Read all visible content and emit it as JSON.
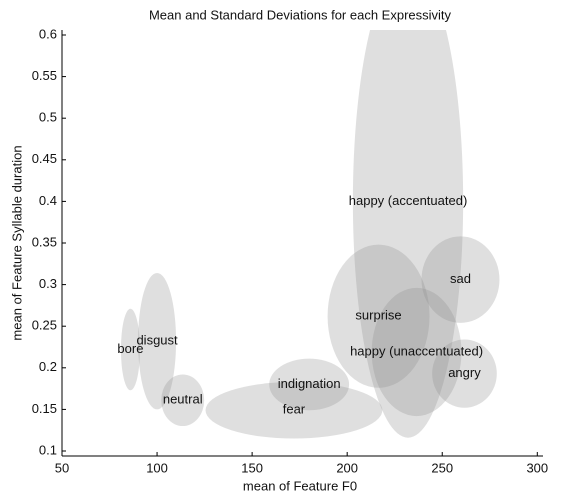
{
  "chart_data": {
    "type": "ellipse",
    "title": "Mean and Standard Deviations for each Expressivity",
    "x_label": "mean of Feature F0",
    "y_label": "mean of Feature Syllable duration",
    "xlim": [
      50,
      303
    ],
    "xticks": [
      50,
      100,
      150,
      200,
      250,
      300
    ],
    "ylim": [
      0.094,
      0.606
    ],
    "yticks": [
      0.1,
      0.15,
      0.2,
      0.25,
      0.3,
      0.35,
      0.4,
      0.45,
      0.5,
      0.55,
      0.6
    ],
    "color": "#8c8c8c",
    "series": [
      {
        "name": "happy (accentuated)",
        "x": 232,
        "y": 0.4,
        "x_std": 29,
        "y_std": 0.284
      },
      {
        "name": "bore",
        "x": 86,
        "y": 0.222,
        "x_std": 5,
        "y_std": 0.049
      },
      {
        "name": "disgust",
        "x": 100,
        "y": 0.232,
        "x_std": 10,
        "y_std": 0.082
      },
      {
        "name": "neutral",
        "x": 113.5,
        "y": 0.161,
        "x_std": 11.3,
        "y_std": 0.031
      },
      {
        "name": "fear",
        "x": 172,
        "y": 0.149,
        "x_std": 46.5,
        "y_std": 0.034
      },
      {
        "name": "indignation",
        "x": 180,
        "y": 0.18,
        "x_std": 21,
        "y_std": 0.031
      },
      {
        "name": "surprise",
        "x": 216.5,
        "y": 0.262,
        "x_std": 26.8,
        "y_std": 0.086
      },
      {
        "name": "sad",
        "x": 259.6,
        "y": 0.306,
        "x_std": 20.5,
        "y_std": 0.052
      },
      {
        "name": "happy (unaccentuated)",
        "x": 236.5,
        "y": 0.219,
        "x_std": 23.6,
        "y_std": 0.077
      },
      {
        "name": "angry",
        "x": 261.7,
        "y": 0.193,
        "x_std": 17,
        "y_std": 0.041
      }
    ]
  }
}
